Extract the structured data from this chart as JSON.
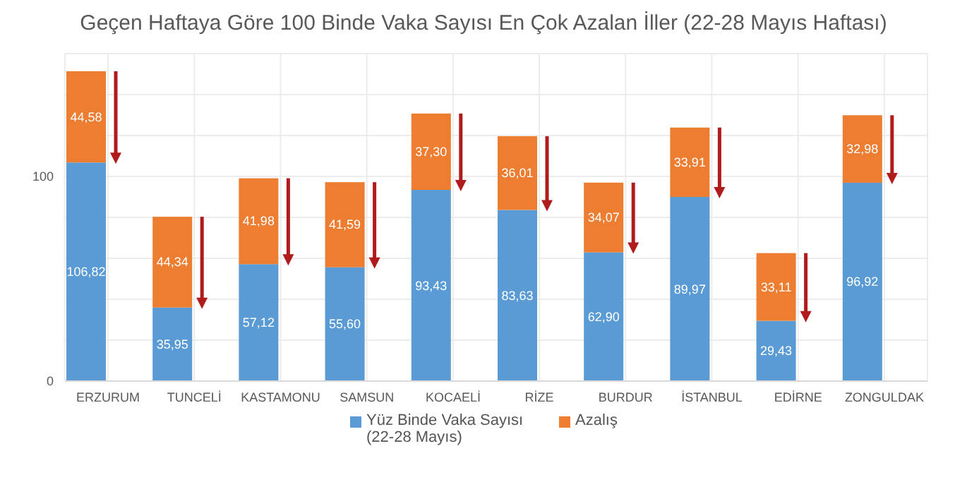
{
  "chart_data": {
    "type": "bar",
    "title": "Geçen Haftaya Göre 100 Binde Vaka Sayısı En Çok Azalan İller (22-28 Mayıs Haftası)",
    "categories": [
      "ERZURUM",
      "TUNCELİ",
      "KASTAMONU",
      "SAMSUN",
      "KOCAELİ",
      "RİZE",
      "BURDUR",
      "İSTANBUL",
      "EDİRNE",
      "ZONGULDAK"
    ],
    "stacked": true,
    "series": [
      {
        "name": "Yüz Binde Vaka Sayısı (22-28 Mayıs)",
        "color": "#5b9bd5",
        "values": [
          106.82,
          35.95,
          57.12,
          55.6,
          93.43,
          83.63,
          62.9,
          89.97,
          29.43,
          96.92
        ],
        "value_labels": [
          "106,82",
          "35,95",
          "57,12",
          "55,60",
          "93,43",
          "83,63",
          "62,90",
          "89,97",
          "29,43",
          "96,92"
        ]
      },
      {
        "name": "Azalış",
        "color": "#ed7d31",
        "values": [
          44.58,
          44.34,
          41.98,
          41.59,
          37.3,
          36.01,
          34.07,
          33.91,
          33.11,
          32.98
        ],
        "value_labels": [
          "44,58",
          "44,34",
          "41,98",
          "41,59",
          "37,30",
          "36,01",
          "34,07",
          "33,91",
          "33,11",
          "32,98"
        ]
      }
    ],
    "ylim": [
      0,
      160
    ],
    "yticks": [
      0,
      {
        "value": 20,
        "label": null
      },
      {
        "value": 40,
        "label": null
      },
      {
        "value": 60,
        "label": null
      },
      {
        "value": 80,
        "label": null
      },
      100,
      {
        "value": 120,
        "label": null
      },
      {
        "value": 140,
        "label": null
      },
      {
        "value": 160,
        "label": null
      }
    ],
    "grid": true,
    "legend": "bottom"
  }
}
